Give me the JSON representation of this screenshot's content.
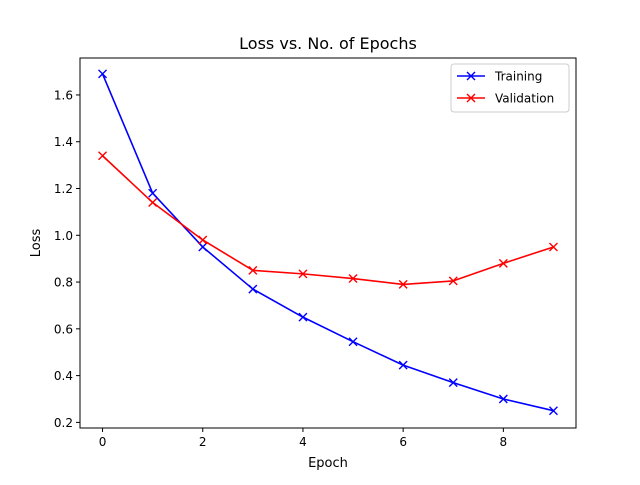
{
  "chart_data": {
    "type": "line",
    "title": "Loss vs. No. of Epochs",
    "xlabel": "Epoch",
    "ylabel": "Loss",
    "xlim": [
      -0.45,
      9.45
    ],
    "ylim": [
      0.176,
      1.758
    ],
    "xticks": [
      0,
      2,
      4,
      6,
      8
    ],
    "xtick_labels": [
      "0",
      "2",
      "4",
      "6",
      "8"
    ],
    "yticks": [
      0.2,
      0.4,
      0.6,
      0.8,
      1.0,
      1.2,
      1.4,
      1.6
    ],
    "ytick_labels": [
      "0.2",
      "0.4",
      "0.6",
      "0.8",
      "1.0",
      "1.2",
      "1.4",
      "1.6"
    ],
    "grid": false,
    "legend_position": "top-right",
    "x": [
      0,
      1,
      2,
      3,
      4,
      5,
      6,
      7,
      8,
      9
    ],
    "series": [
      {
        "name": "Training",
        "color": "#0000ff",
        "marker": "x",
        "values": [
          1.69,
          1.18,
          0.95,
          0.77,
          0.65,
          0.545,
          0.445,
          0.37,
          0.3,
          0.25
        ]
      },
      {
        "name": "Validation",
        "color": "#ff0000",
        "marker": "x",
        "values": [
          1.34,
          1.14,
          0.98,
          0.85,
          0.835,
          0.815,
          0.79,
          0.805,
          0.88,
          0.95
        ]
      }
    ]
  }
}
